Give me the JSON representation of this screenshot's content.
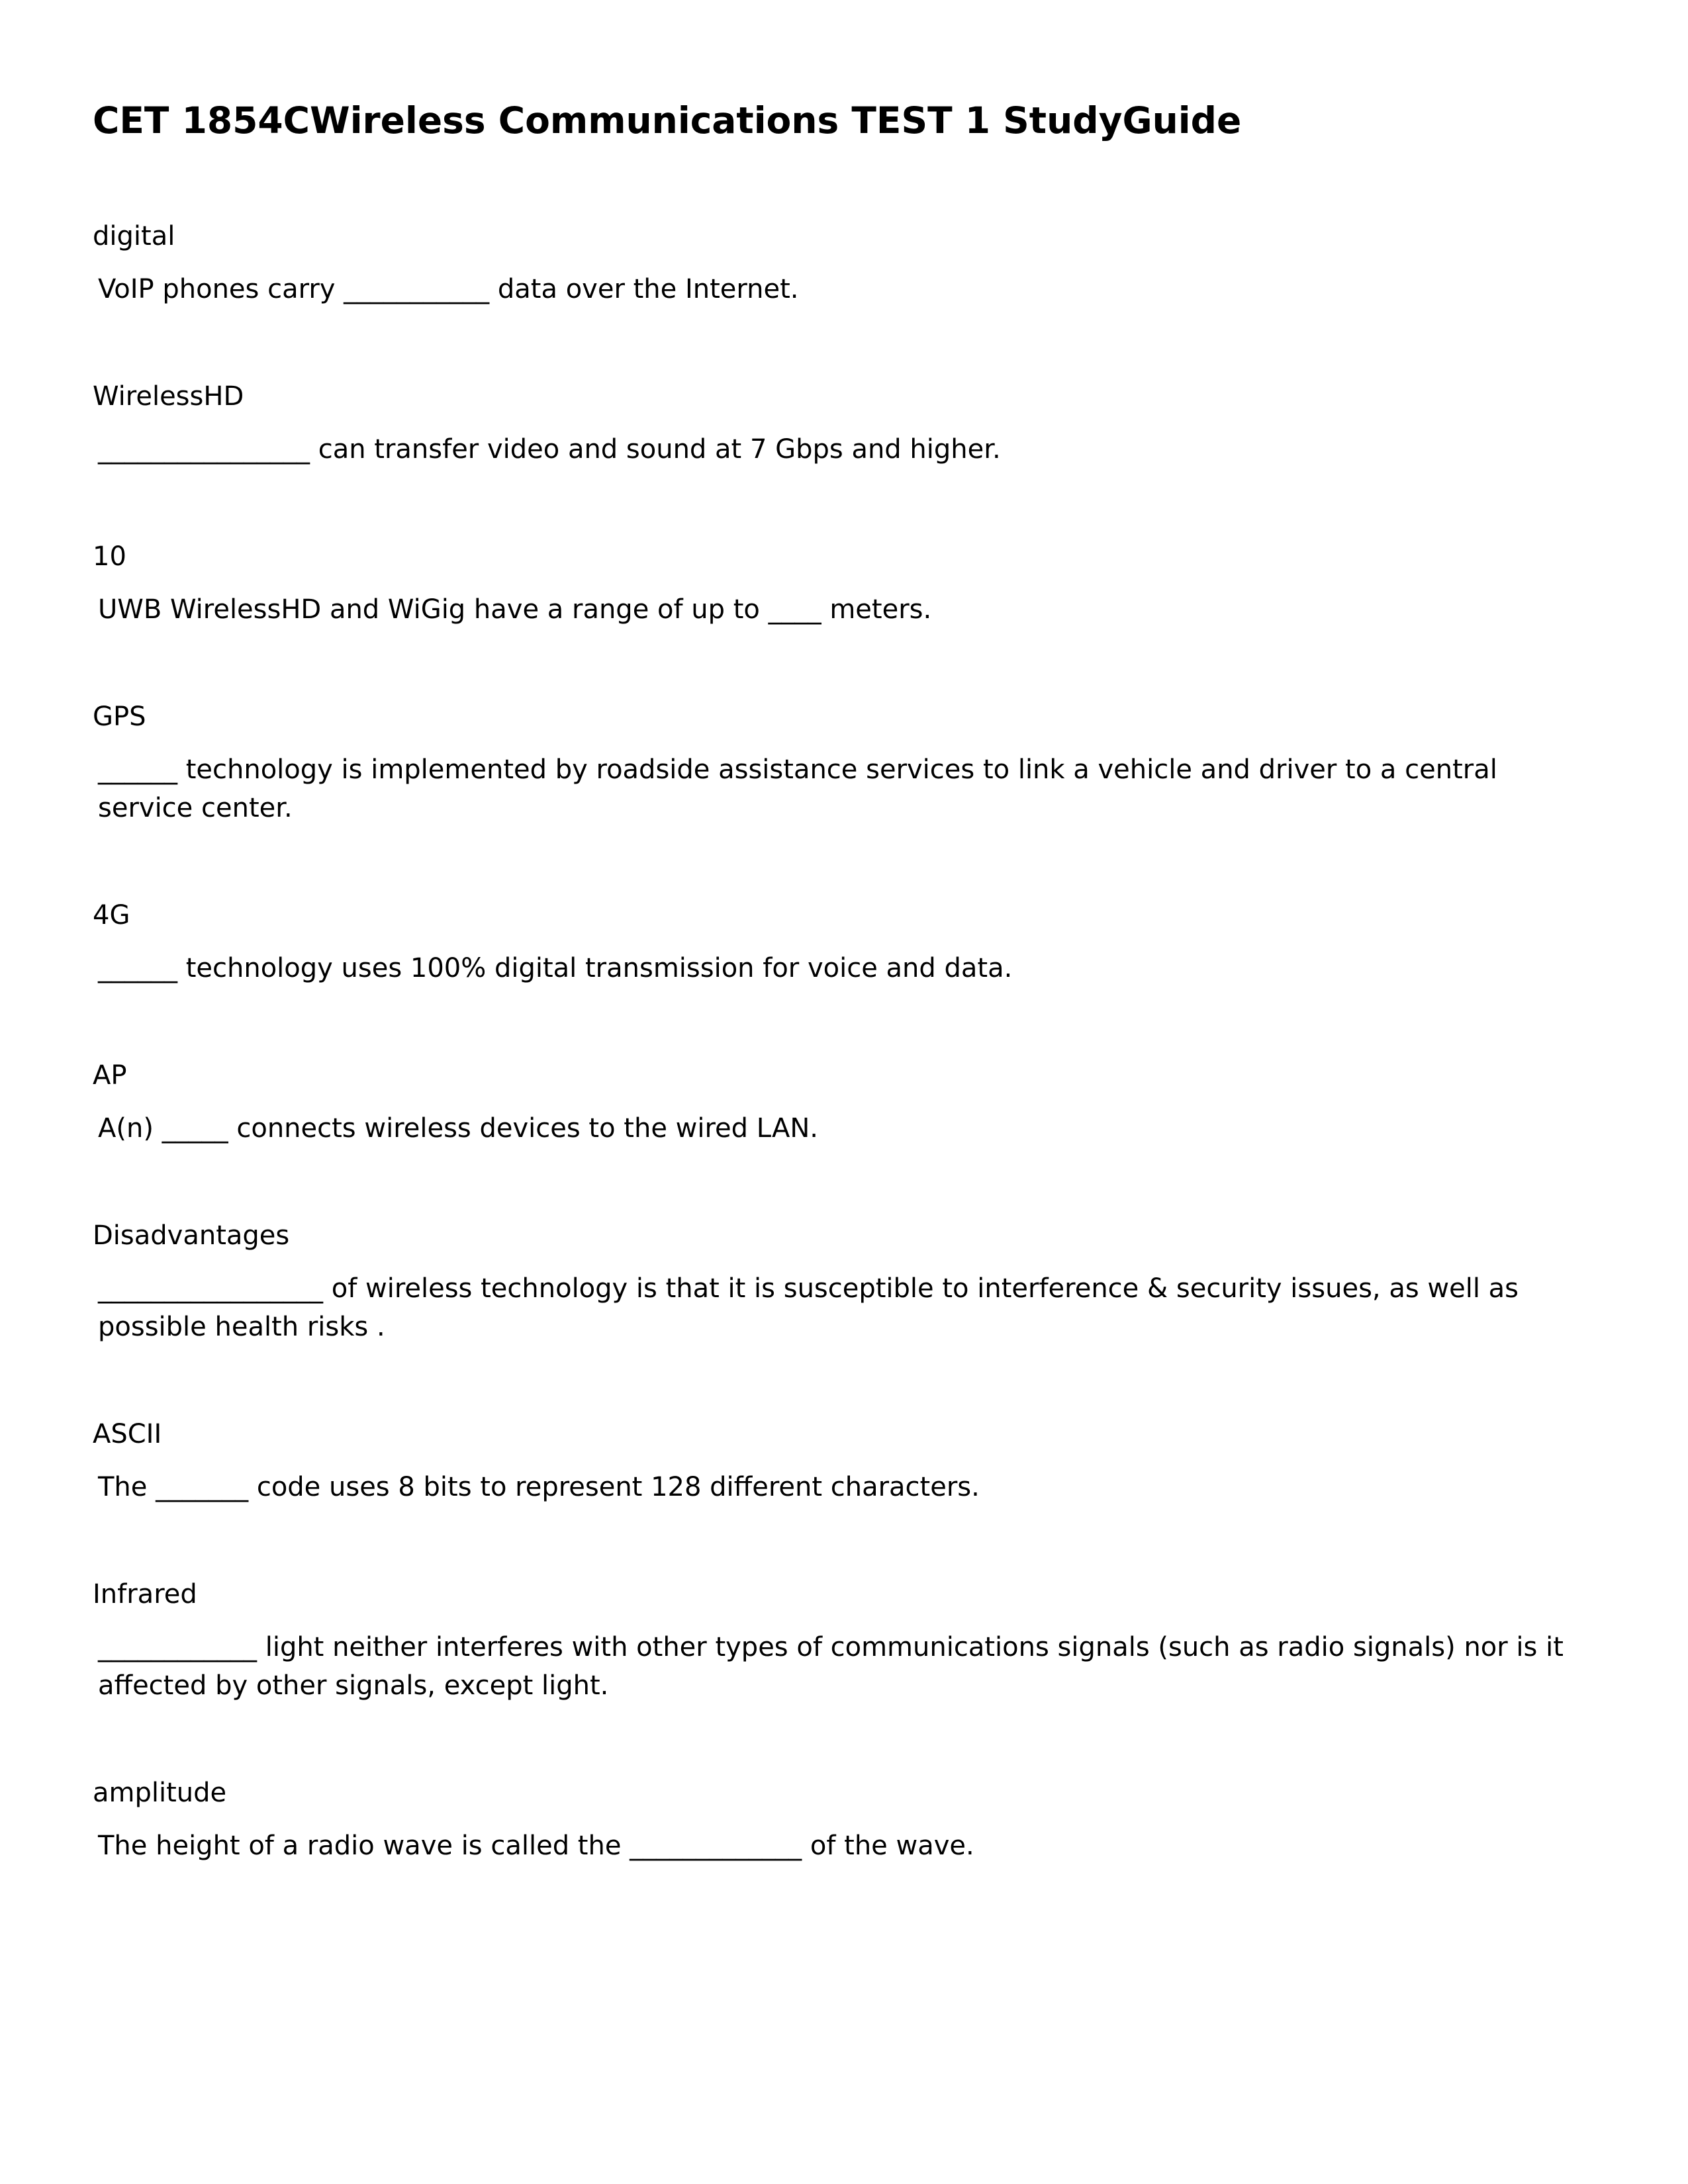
{
  "title": "CET 1854CWireless Communications TEST 1 StudyGuide",
  "items": [
    {
      "answer": "digital",
      "question": " VoIP phones carry ___________ data over the Internet."
    },
    {
      "answer": "WirelessHD",
      "question": " ________________ can transfer video and sound at 7 Gbps and higher."
    },
    {
      "answer": "10",
      "question": " UWB WirelessHD and WiGig have a range of up to ____ meters."
    },
    {
      "answer": "GPS",
      "question": " ______ technology is implemented by roadside assistance services to link a vehicle and driver to a central service center."
    },
    {
      "answer": "4G",
      "question": " ______ technology uses 100% digital transmission for voice and data."
    },
    {
      "answer": "AP",
      "question": " A(n) _____ connects wireless devices to the wired LAN."
    },
    {
      "answer": "Disadvantages",
      "question": " _________________ of wireless technology is that it is susceptible to interference & security issues, as well as possible health risks ."
    },
    {
      "answer": "ASCII",
      "question": " The _______ code uses 8 bits to represent 128 different characters."
    },
    {
      "answer": "Infrared",
      "question": " ____________ light neither interferes with other types of communications signals (such as radio signals) nor is it affected by other signals, except light."
    },
    {
      "answer": "amplitude",
      "question": " The height of a radio wave is called the _____________ of the wave."
    }
  ],
  "style": {
    "background_color": "#ffffff",
    "text_color": "#000000",
    "title_fontsize": 55,
    "body_fontsize": 40,
    "font_family": "DejaVu Sans, Verdana, sans-serif"
  }
}
